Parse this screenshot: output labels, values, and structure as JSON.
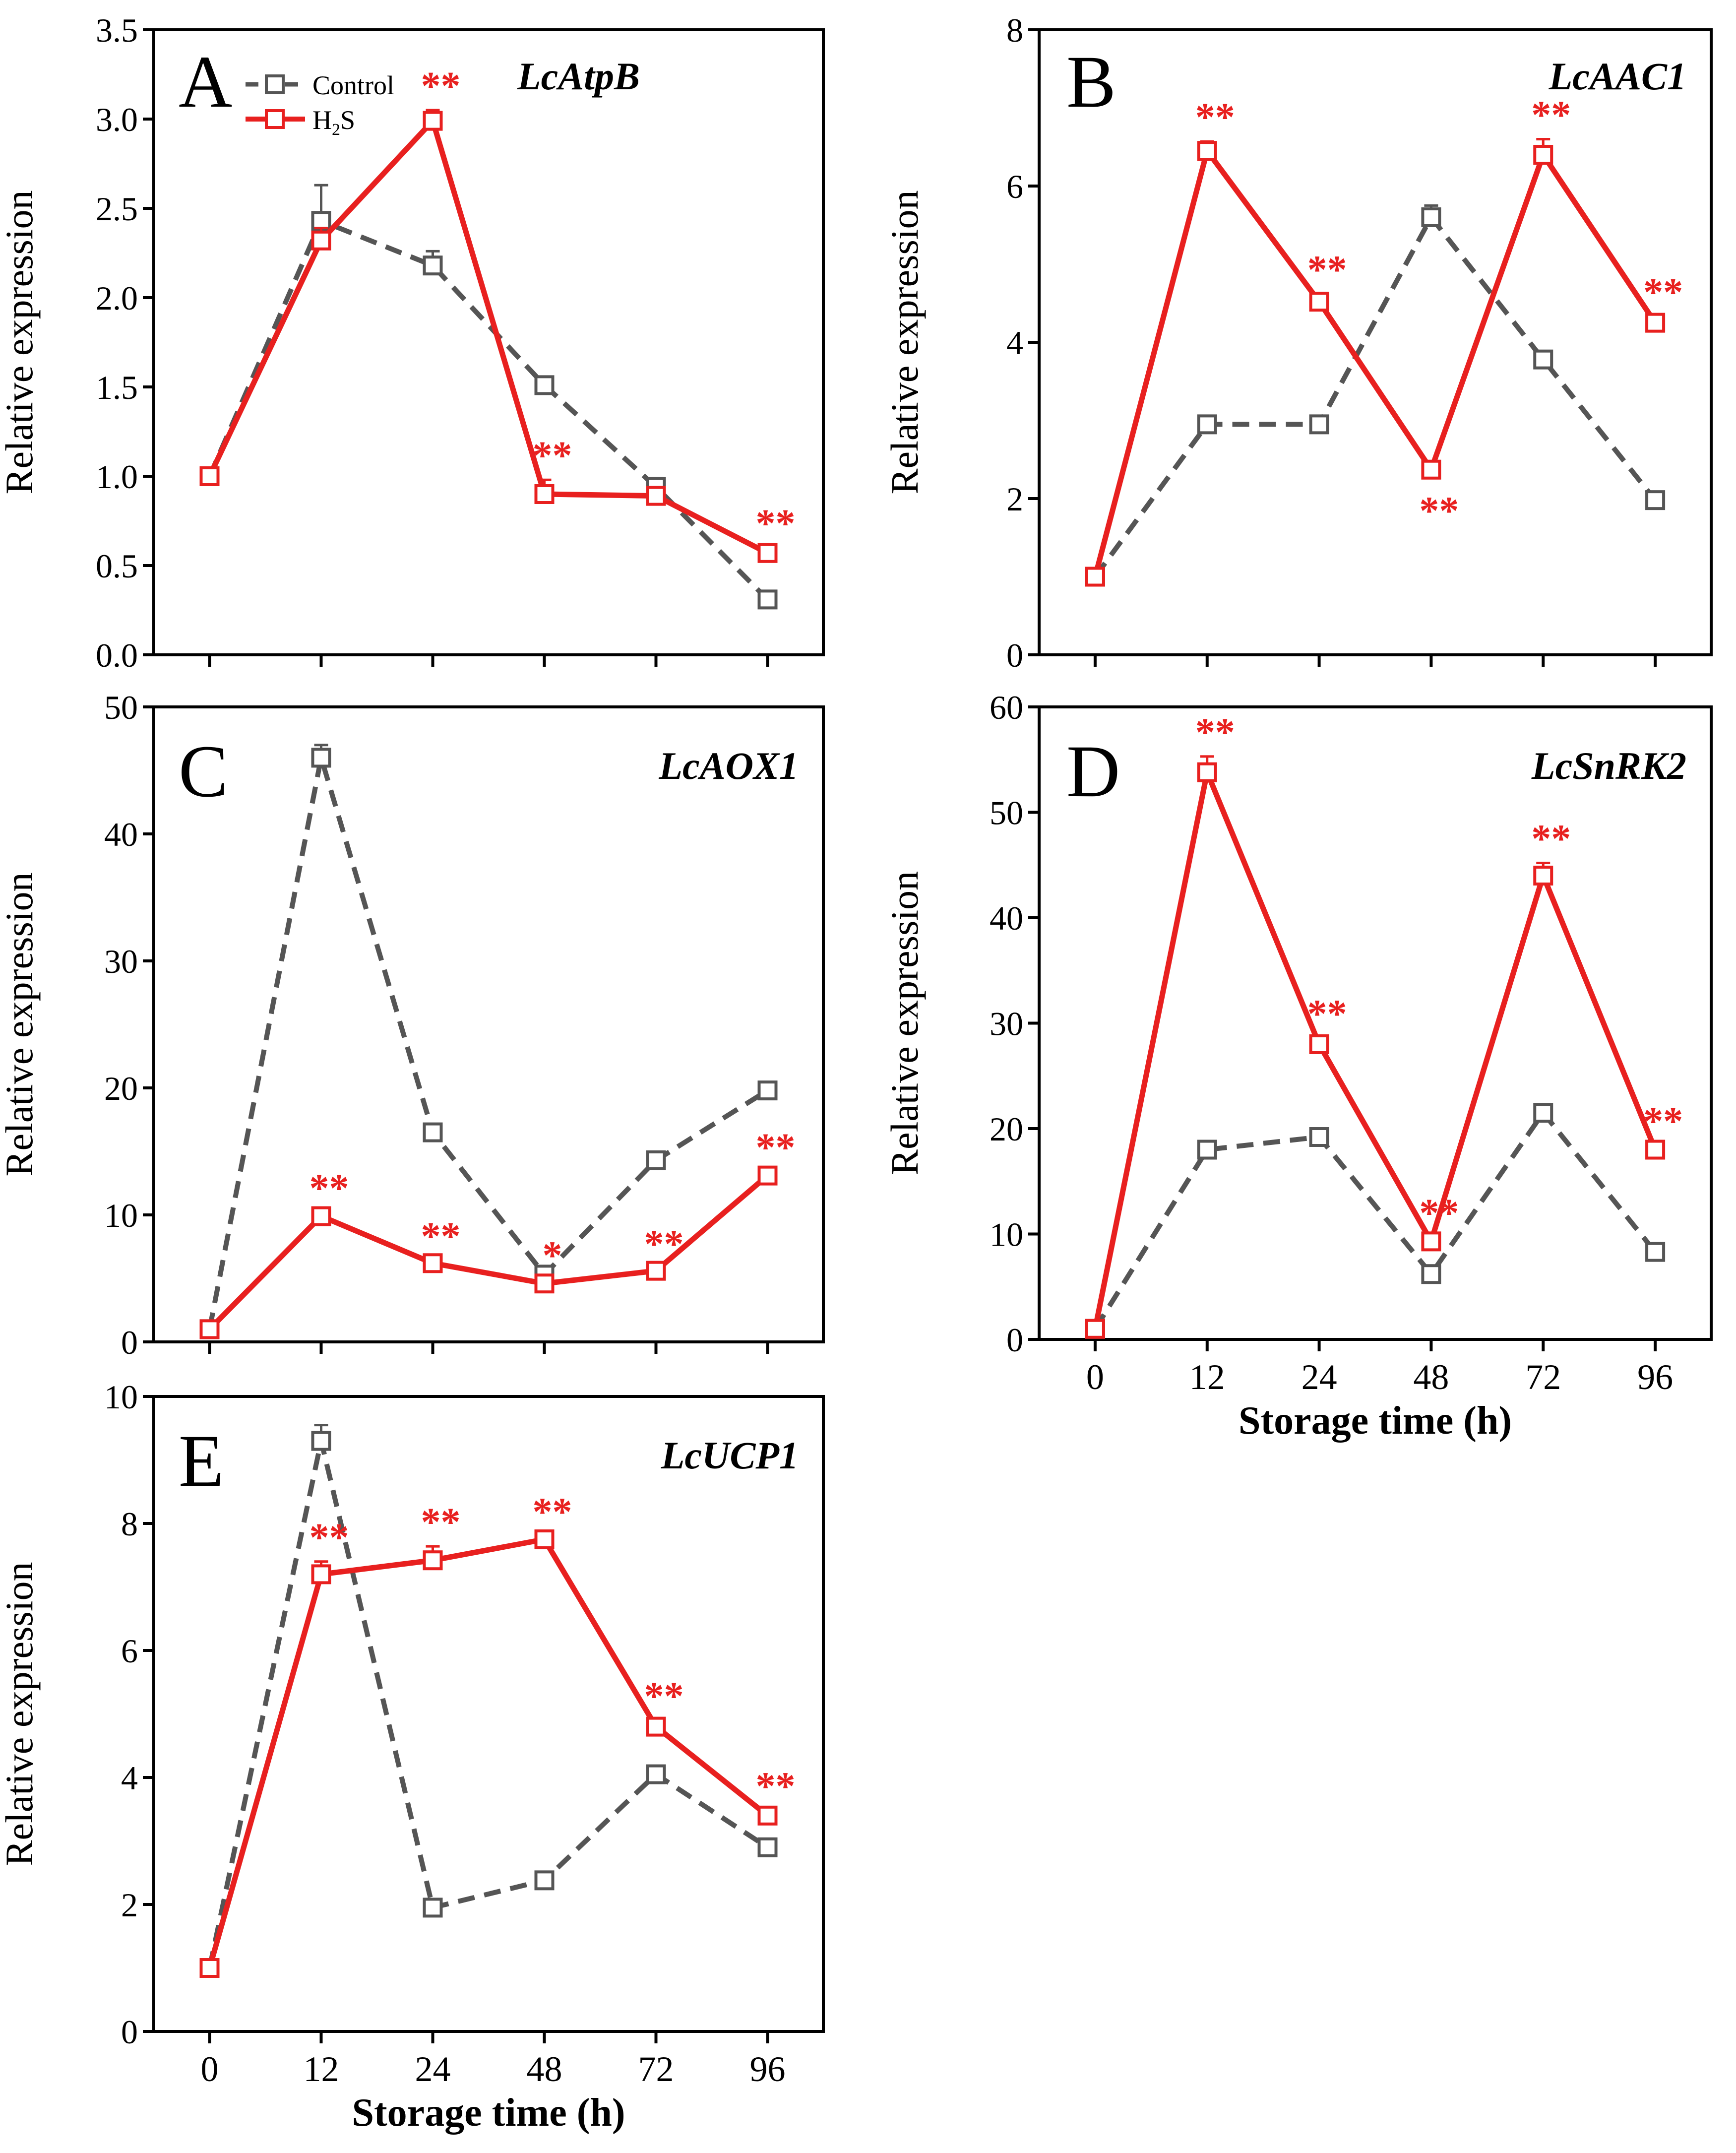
{
  "colors": {
    "control": "#555555",
    "h2s": "#e8201f",
    "axis": "#000000",
    "background": "#ffffff"
  },
  "legend": {
    "control_label": "Control",
    "h2s_label_base": "H",
    "h2s_label_sub": "2",
    "h2s_label_tail": "S"
  },
  "chart_data": [
    {
      "type": "line",
      "panel": "A",
      "gene": "LcAtpB",
      "categories": [
        "0",
        "12",
        "24",
        "48",
        "72",
        "96"
      ],
      "ylabel": "Relative expression",
      "xlabel": "",
      "ylim": [
        0,
        3.5
      ],
      "yticks": [
        "0.0",
        "0.5",
        "1.0",
        "1.5",
        "2.0",
        "2.5",
        "3.0",
        "3.5"
      ],
      "show_xtick_labels": false,
      "show_legend": true,
      "series": [
        {
          "name": "Control",
          "values": [
            1.0,
            2.43,
            2.18,
            1.51,
            0.94,
            0.31
          ],
          "errors": [
            0.03,
            0.2,
            0.08,
            0.03,
            0.05,
            0.02
          ]
        },
        {
          "name": "H2S",
          "values": [
            1.0,
            2.32,
            2.99,
            0.9,
            0.89,
            0.57
          ],
          "errors": [
            0.03,
            0.07,
            0.06,
            0.08,
            0.03,
            0.03
          ]
        }
      ],
      "annotations": [
        "",
        "",
        "**",
        "**",
        "",
        "**"
      ]
    },
    {
      "type": "line",
      "panel": "B",
      "gene": "LcAAC1",
      "categories": [
        "0",
        "12",
        "24",
        "48",
        "72",
        "96"
      ],
      "ylabel": "Relative expression",
      "xlabel": "",
      "ylim": [
        0,
        8
      ],
      "yticks": [
        "0",
        "2",
        "4",
        "6",
        "8"
      ],
      "show_xtick_labels": false,
      "show_legend": false,
      "series": [
        {
          "name": "Control",
          "values": [
            1.0,
            2.95,
            2.95,
            5.6,
            3.78,
            1.98
          ],
          "errors": [
            0.03,
            0.05,
            0.05,
            0.15,
            0.06,
            0.05
          ]
        },
        {
          "name": "H2S",
          "values": [
            1.0,
            6.45,
            4.52,
            2.37,
            6.4,
            4.25
          ],
          "errors": [
            0.03,
            0.12,
            0.1,
            0.08,
            0.2,
            0.08
          ]
        }
      ],
      "annotations": [
        "",
        "**",
        "**",
        "**",
        "**",
        "**"
      ],
      "annotation_below": [
        false,
        false,
        false,
        true,
        false,
        false
      ]
    },
    {
      "type": "line",
      "panel": "C",
      "gene": "LcAOX1",
      "categories": [
        "0",
        "12",
        "24",
        "48",
        "72",
        "96"
      ],
      "ylabel": "Relative expression",
      "xlabel": "",
      "ylim": [
        0,
        50
      ],
      "yticks": [
        "0",
        "10",
        "20",
        "30",
        "40",
        "50"
      ],
      "show_xtick_labels": false,
      "show_legend": false,
      "series": [
        {
          "name": "Control",
          "values": [
            1.0,
            46.0,
            16.5,
            5.3,
            14.3,
            19.8
          ],
          "errors": [
            0.2,
            1.0,
            0.3,
            0.2,
            0.3,
            0.3
          ]
        },
        {
          "name": "H2S",
          "values": [
            1.0,
            9.9,
            6.2,
            4.6,
            5.6,
            13.1
          ],
          "errors": [
            0.2,
            0.3,
            0.2,
            0.3,
            0.2,
            0.3
          ]
        }
      ],
      "annotations": [
        "",
        "**",
        "**",
        "*",
        "**",
        "**"
      ]
    },
    {
      "type": "line",
      "panel": "D",
      "gene": "LcSnRK2",
      "categories": [
        "0",
        "12",
        "24",
        "48",
        "72",
        "96"
      ],
      "ylabel": "Relative expression",
      "xlabel": "Storage time (h)",
      "ylim": [
        0,
        60
      ],
      "yticks": [
        "0",
        "10",
        "20",
        "30",
        "40",
        "50",
        "60"
      ],
      "show_xtick_labels": true,
      "show_legend": false,
      "series": [
        {
          "name": "Control",
          "values": [
            1.0,
            18.0,
            19.2,
            6.2,
            21.5,
            8.3
          ],
          "errors": [
            0.2,
            0.3,
            0.3,
            0.3,
            0.4,
            0.3
          ]
        },
        {
          "name": "H2S",
          "values": [
            1.0,
            53.8,
            28.0,
            9.3,
            44.0,
            18.0
          ],
          "errors": [
            0.2,
            1.5,
            0.6,
            0.4,
            1.2,
            0.4
          ]
        }
      ],
      "annotations": [
        "",
        "**",
        "**",
        "**",
        "**",
        "**"
      ]
    },
    {
      "type": "line",
      "panel": "E",
      "gene": "LcUCP1",
      "categories": [
        "0",
        "12",
        "24",
        "48",
        "72",
        "96"
      ],
      "ylabel": "Relative expression",
      "xlabel": "Storage time (h)",
      "ylim": [
        0,
        10
      ],
      "yticks": [
        "0",
        "2",
        "4",
        "6",
        "8",
        "10"
      ],
      "show_xtick_labels": true,
      "show_legend": false,
      "series": [
        {
          "name": "Control",
          "values": [
            1.0,
            9.3,
            1.95,
            2.38,
            4.05,
            2.9
          ],
          "errors": [
            0.03,
            0.25,
            0.05,
            0.05,
            0.08,
            0.05
          ]
        },
        {
          "name": "H2S",
          "values": [
            1.0,
            7.2,
            7.42,
            7.75,
            4.8,
            3.4
          ],
          "errors": [
            0.03,
            0.2,
            0.22,
            0.05,
            0.1,
            0.08
          ]
        }
      ],
      "annotations": [
        "",
        "**",
        "**",
        "**",
        "**",
        "**"
      ]
    }
  ]
}
